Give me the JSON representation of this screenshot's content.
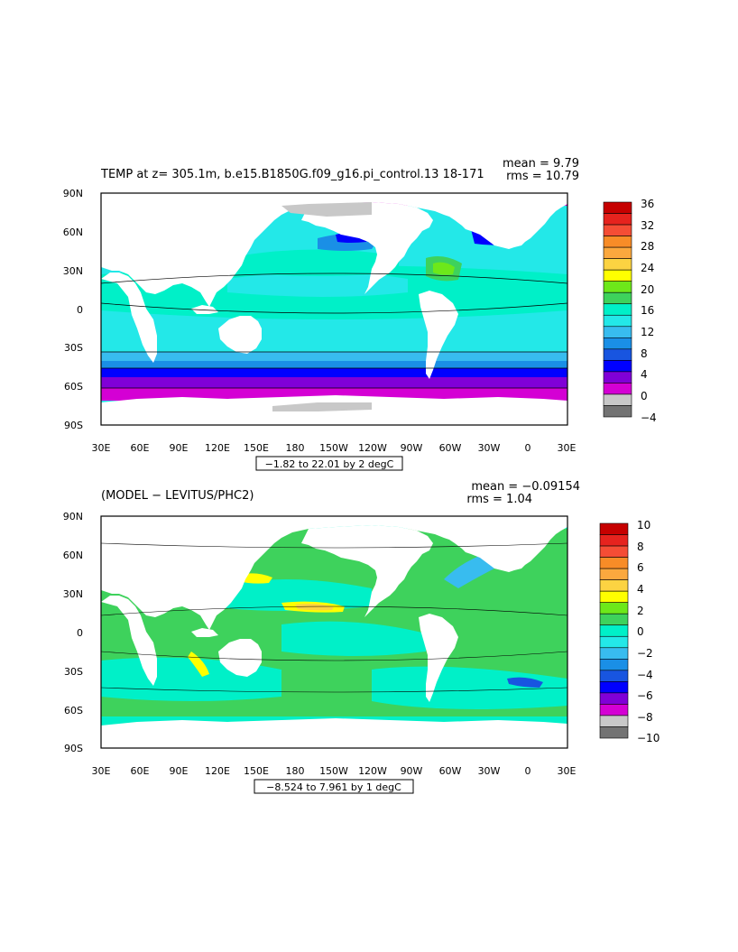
{
  "panels": [
    {
      "title": "TEMP at z= 305.1m, b.e15.B1850G.f09_g16.pi_control.13 18-171",
      "mean": "mean = 9.79",
      "rms": "rms = 10.79",
      "contour_label": "−1.82 to 22.01 by 2 degC",
      "colorbar_labels": [
        "36",
        "32",
        "28",
        "24",
        "20",
        "16",
        "12",
        "8",
        "4",
        "0",
        "−4"
      ],
      "colorbar_colors": [
        "#c60000",
        "#e6231e",
        "#f54d35",
        "#f88c27",
        "#fba83e",
        "#fcd342",
        "#ffff00",
        "#6de81a",
        "#3ed25c",
        "#00f0c8",
        "#23e8e8",
        "#38bcef",
        "#1a8fe6",
        "#1855e0",
        "#0000ff",
        "#8000d7",
        "#d400d4",
        "#c8c8c8",
        "#737373"
      ]
    },
    {
      "title": "(MODEL − LEVITUS/PHC2)",
      "mean": "mean = −0.09154",
      "rms": "rms = 1.04",
      "contour_label": "−8.524 to 7.961 by 1 degC",
      "colorbar_labels": [
        "10",
        "8",
        "6",
        "4",
        "2",
        "0",
        "−2",
        "−4",
        "−6",
        "−8",
        "−10"
      ],
      "colorbar_colors": [
        "#c60000",
        "#e6231e",
        "#f54d35",
        "#f88c27",
        "#fba83e",
        "#fcd342",
        "#ffff00",
        "#6de81a",
        "#3ed25c",
        "#00f0c8",
        "#23e8e8",
        "#38bcef",
        "#1a8fe6",
        "#1855e0",
        "#0000ff",
        "#8000d7",
        "#d400d4",
        "#c8c8c8",
        "#737373"
      ]
    }
  ],
  "axes": {
    "lat_labels": [
      "90N",
      "60N",
      "30N",
      "0",
      "30S",
      "60S",
      "90S"
    ],
    "lon_labels": [
      "30E",
      "60E",
      "90E",
      "120E",
      "150E",
      "180",
      "150W",
      "120W",
      "90W",
      "60W",
      "30W",
      "0",
      "30E"
    ]
  },
  "colors": {
    "land": "#ffffff",
    "sea_ice": "#c8c8c8",
    "arctic_top": "#d400d4",
    "arctic_bottom": "#23e8e8"
  }
}
